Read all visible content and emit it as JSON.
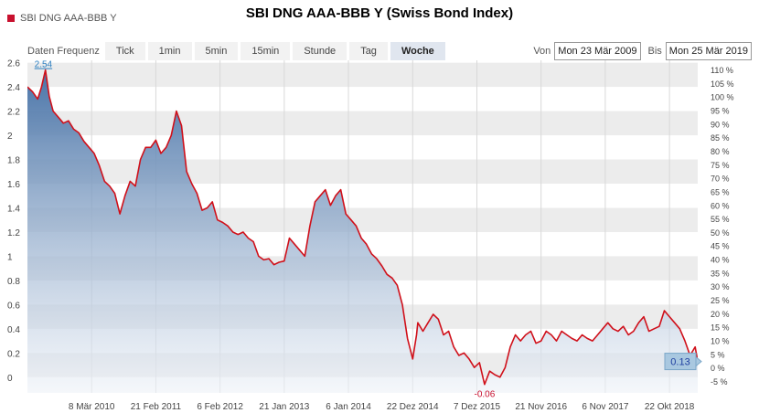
{
  "title": "SBI DNG AAA-BBB Y (Swiss Bond Index)",
  "legend_label": "SBI DNG AAA-BBB Y",
  "toolbar": {
    "freq_label": "Daten Frequenz",
    "buttons": [
      "Tick",
      "1min",
      "5min",
      "15min",
      "Stunde",
      "Tag",
      "Woche"
    ],
    "active": "Woche"
  },
  "range": {
    "from_label": "Von",
    "from_value": "Mon 23 Mär 2009",
    "to_label": "Bis",
    "to_value": "Mon 25 Mär 2019"
  },
  "colors": {
    "line": "#d0101a",
    "area_top": "#3f6ca3",
    "area_bottom": "#eef2f8",
    "band": "#ececec",
    "current_box": "#a9c8e0"
  },
  "chart_data": {
    "type": "area",
    "title": "SBI DNG AAA-BBB Y (Swiss Bond Index)",
    "series": [
      {
        "name": "SBI DNG AAA-BBB Y",
        "x": [
          "2009-03-23",
          "2009-04-20",
          "2009-05-18",
          "2009-06-08",
          "2009-06-29",
          "2009-07-20",
          "2009-08-10",
          "2009-09-07",
          "2009-10-05",
          "2009-11-02",
          "2009-11-30",
          "2009-12-28",
          "2010-01-25",
          "2010-02-22",
          "2010-03-22",
          "2010-04-19",
          "2010-05-17",
          "2010-06-14",
          "2010-07-12",
          "2010-08-09",
          "2010-09-06",
          "2010-10-04",
          "2010-11-01",
          "2010-11-29",
          "2010-12-27",
          "2011-01-24",
          "2011-02-21",
          "2011-03-21",
          "2011-04-18",
          "2011-05-16",
          "2011-06-13",
          "2011-07-11",
          "2011-08-08",
          "2011-09-05",
          "2011-10-03",
          "2011-10-31",
          "2011-11-28",
          "2011-12-26",
          "2012-01-23",
          "2012-02-20",
          "2012-03-19",
          "2012-04-16",
          "2012-05-14",
          "2012-06-11",
          "2012-07-09",
          "2012-08-06",
          "2012-09-03",
          "2012-10-01",
          "2012-10-29",
          "2012-11-26",
          "2012-12-24",
          "2013-01-21",
          "2013-02-18",
          "2013-03-18",
          "2013-04-15",
          "2013-05-13",
          "2013-06-10",
          "2013-07-08",
          "2013-08-05",
          "2013-09-02",
          "2013-09-30",
          "2013-10-28",
          "2013-11-25",
          "2013-12-23",
          "2014-01-20",
          "2014-02-17",
          "2014-03-17",
          "2014-04-14",
          "2014-05-12",
          "2014-06-09",
          "2014-07-07",
          "2014-08-04",
          "2014-09-01",
          "2014-09-29",
          "2014-10-27",
          "2014-11-24",
          "2014-12-22",
          "2015-01-12",
          "2015-01-19",
          "2015-02-16",
          "2015-03-16",
          "2015-04-13",
          "2015-05-11",
          "2015-06-08",
          "2015-07-06",
          "2015-08-03",
          "2015-08-31",
          "2015-09-28",
          "2015-10-26",
          "2015-11-23",
          "2015-12-21",
          "2016-01-18",
          "2016-02-15",
          "2016-03-14",
          "2016-04-11",
          "2016-05-09",
          "2016-06-06",
          "2016-07-04",
          "2016-08-01",
          "2016-08-29",
          "2016-09-26",
          "2016-10-24",
          "2016-11-21",
          "2016-12-19",
          "2017-01-16",
          "2017-02-13",
          "2017-03-13",
          "2017-04-10",
          "2017-05-08",
          "2017-06-05",
          "2017-07-03",
          "2017-07-31",
          "2017-08-28",
          "2017-09-25",
          "2017-10-23",
          "2017-11-20",
          "2017-12-18",
          "2018-01-15",
          "2018-02-12",
          "2018-03-12",
          "2018-04-09",
          "2018-05-07",
          "2018-06-04",
          "2018-07-02",
          "2018-07-30",
          "2018-08-27",
          "2018-09-24",
          "2018-10-22",
          "2018-11-19",
          "2018-12-17",
          "2019-01-14",
          "2019-02-11",
          "2019-03-11",
          "2019-03-25"
        ],
        "y": [
          2.4,
          2.36,
          2.3,
          2.4,
          2.54,
          2.32,
          2.2,
          2.15,
          2.1,
          2.12,
          2.05,
          2.02,
          1.95,
          1.9,
          1.85,
          1.75,
          1.62,
          1.58,
          1.52,
          1.35,
          1.5,
          1.62,
          1.58,
          1.8,
          1.9,
          1.9,
          1.96,
          1.85,
          1.9,
          2.0,
          2.2,
          2.08,
          1.7,
          1.6,
          1.52,
          1.38,
          1.4,
          1.45,
          1.3,
          1.28,
          1.25,
          1.2,
          1.18,
          1.2,
          1.15,
          1.12,
          1.0,
          0.97,
          0.98,
          0.93,
          0.95,
          0.96,
          1.15,
          1.1,
          1.05,
          1.0,
          1.25,
          1.45,
          1.5,
          1.55,
          1.42,
          1.5,
          1.55,
          1.35,
          1.3,
          1.25,
          1.15,
          1.1,
          1.02,
          0.98,
          0.92,
          0.85,
          0.82,
          0.76,
          0.6,
          0.32,
          0.15,
          0.35,
          0.45,
          0.38,
          0.45,
          0.52,
          0.48,
          0.35,
          0.38,
          0.25,
          0.18,
          0.2,
          0.15,
          0.08,
          0.12,
          -0.06,
          0.05,
          0.02,
          0.0,
          0.08,
          0.25,
          0.35,
          0.3,
          0.35,
          0.38,
          0.28,
          0.3,
          0.38,
          0.35,
          0.3,
          0.38,
          0.35,
          0.32,
          0.3,
          0.35,
          0.32,
          0.3,
          0.35,
          0.4,
          0.45,
          0.4,
          0.38,
          0.42,
          0.35,
          0.38,
          0.45,
          0.5,
          0.38,
          0.4,
          0.42,
          0.55,
          0.5,
          0.45,
          0.4,
          0.3,
          0.18,
          0.25,
          0.13
        ]
      }
    ],
    "x_tick_labels": [
      "8 Mär 2010",
      "21 Feb 2011",
      "6 Feb 2012",
      "21 Jan 2013",
      "6 Jan 2014",
      "22 Dez 2014",
      "7 Dez 2015",
      "21 Nov 2016",
      "6 Nov 2017",
      "22 Okt 2018"
    ],
    "x_tick_dates": [
      "2010-03-08",
      "2011-02-21",
      "2012-02-06",
      "2013-01-21",
      "2014-01-06",
      "2014-12-22",
      "2015-12-07",
      "2016-11-21",
      "2017-11-06",
      "2018-10-22"
    ],
    "xlim": [
      "2009-03-23",
      "2019-03-25"
    ],
    "y_ticks": [
      0,
      0.2,
      0.4,
      0.6,
      0.8,
      1,
      1.2,
      1.4,
      1.6,
      1.8,
      2,
      2.2,
      2.4,
      2.6
    ],
    "y_tick_labels": [
      "0",
      "0.2",
      "0.4",
      "0.6",
      "0.8",
      "1",
      "1.2",
      "1.4",
      "1.6",
      "1.8",
      "2",
      "2.2",
      "2.4",
      "2.6"
    ],
    "ylim": [
      -0.13,
      2.62
    ],
    "y2_ticks": [
      -5,
      0,
      5,
      10,
      15,
      20,
      25,
      30,
      35,
      40,
      45,
      50,
      55,
      60,
      65,
      70,
      75,
      80,
      85,
      90,
      95,
      100,
      105,
      110
    ],
    "y2_tick_labels": [
      "-5 %",
      "0 %",
      "5 %",
      "10 %",
      "15 %",
      "20 %",
      "25 %",
      "30 %",
      "35 %",
      "40 %",
      "45 %",
      "50 %",
      "55 %",
      "60 %",
      "65 %",
      "70 %",
      "75 %",
      "80 %",
      "85 %",
      "90 %",
      "95 %",
      "100 %",
      "105 %",
      "110 %"
    ],
    "annotations": {
      "max": {
        "label": "2.54",
        "x": "2009-06-29",
        "y": 2.54
      },
      "min": {
        "label": "-0.06",
        "x": "2016-01-18",
        "y": -0.06
      },
      "current": {
        "label": "0.13",
        "x": "2019-03-25",
        "y": 0.13
      }
    },
    "grid": true
  }
}
